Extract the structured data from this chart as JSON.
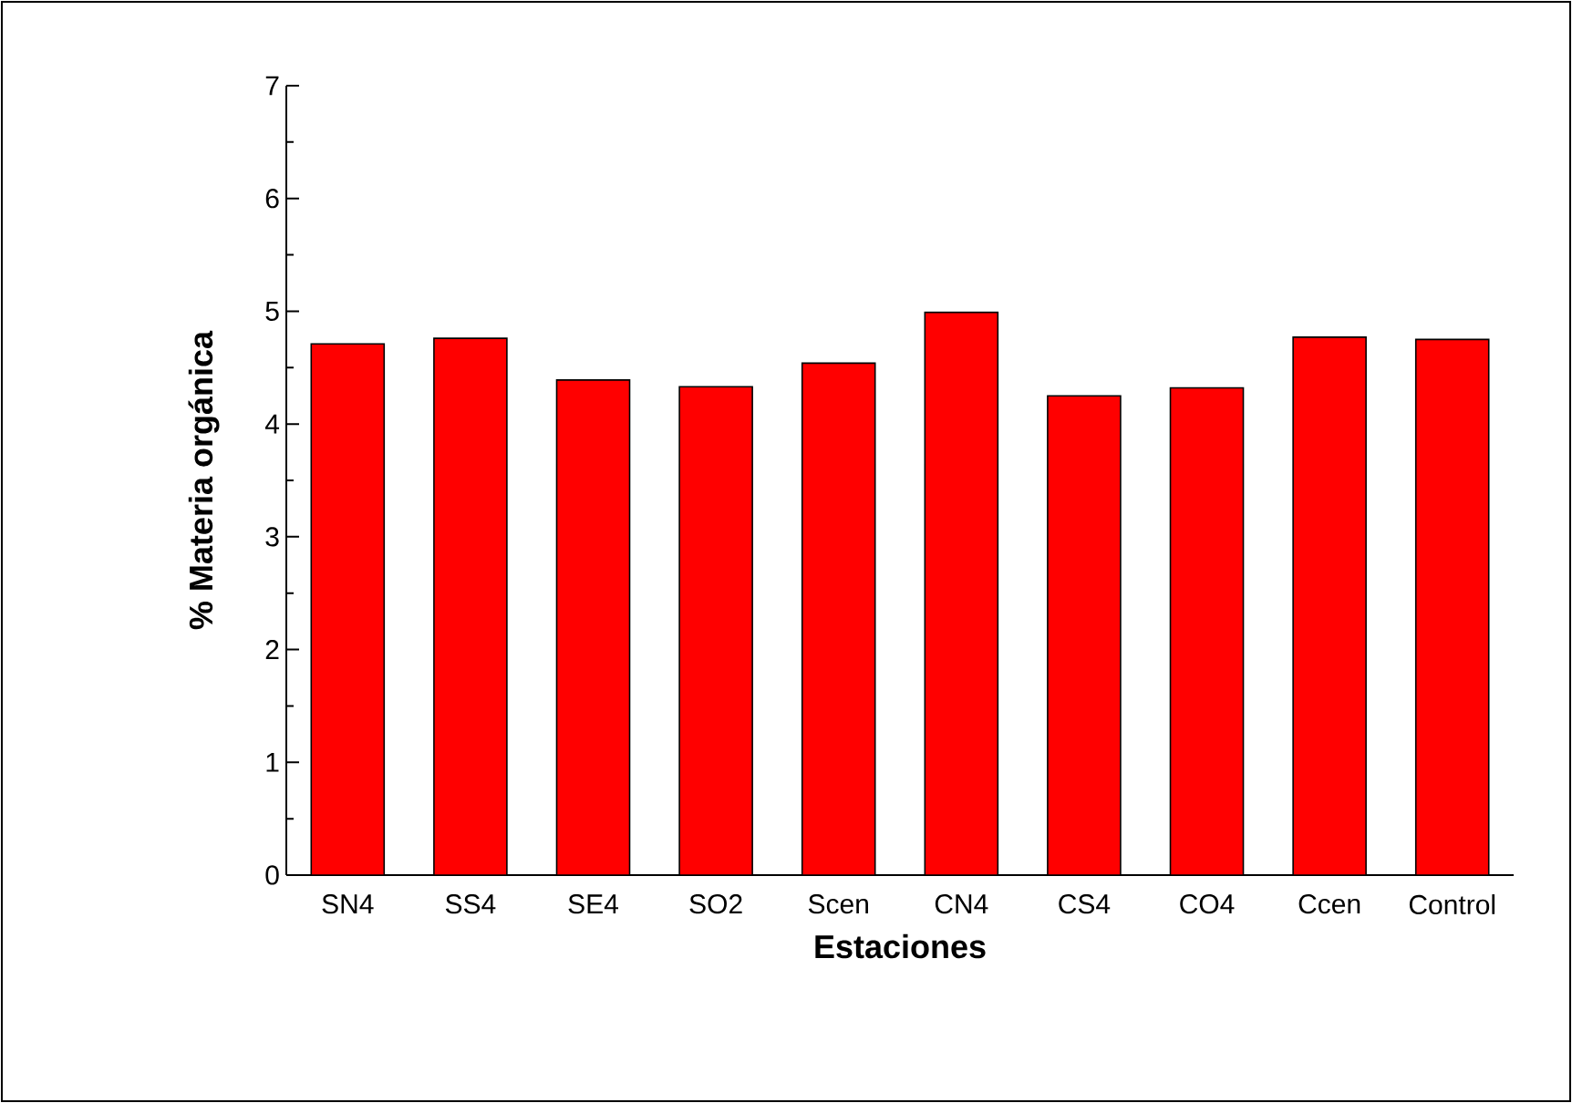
{
  "chart_data": {
    "type": "bar",
    "xlabel": "Estaciones",
    "ylabel": "% Materia orgánica",
    "categories": [
      "SN4",
      "SS4",
      "SE4",
      "SO2",
      "Scen",
      "CN4",
      "CS4",
      "CO4",
      "Ccen",
      "Control"
    ],
    "values": [
      4.71,
      4.76,
      4.39,
      4.33,
      4.54,
      4.99,
      4.25,
      4.32,
      4.77,
      4.75
    ],
    "color": "#ff0000",
    "ylim": [
      0,
      7
    ],
    "yticks": [
      0,
      1,
      2,
      3,
      4,
      5,
      6,
      7
    ],
    "grid": false
  }
}
